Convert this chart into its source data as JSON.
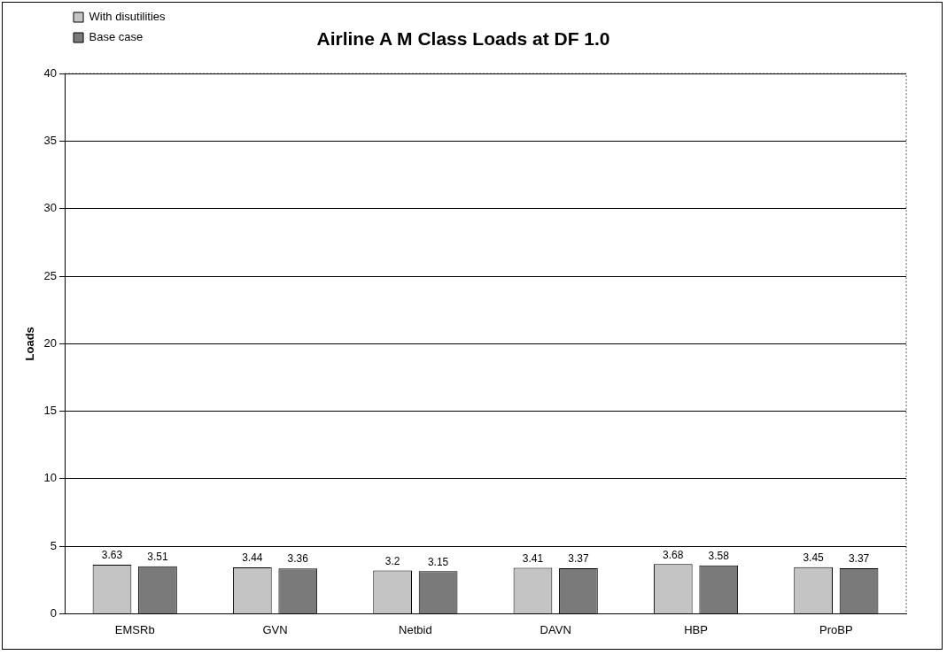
{
  "chart_data": {
    "type": "bar",
    "title": "Airline A M Class Loads at DF 1.0",
    "ylabel": "Loads",
    "categories": [
      "EMSRb",
      "GVN",
      "Netbid",
      "DAVN",
      "HBP",
      "ProBP"
    ],
    "series": [
      {
        "name": "With disutilities",
        "color": "#c4c4c4",
        "values": [
          3.63,
          3.44,
          3.2,
          3.41,
          3.68,
          3.45
        ]
      },
      {
        "name": "Base case",
        "color": "#7a7a7a",
        "values": [
          3.51,
          3.36,
          3.15,
          3.37,
          3.58,
          3.37
        ]
      }
    ],
    "ylim": [
      0,
      40
    ],
    "yticks": [
      0,
      5,
      10,
      15,
      20,
      25,
      30,
      35,
      40
    ],
    "grid": "y",
    "legend": "top left",
    "data_labels": true
  }
}
